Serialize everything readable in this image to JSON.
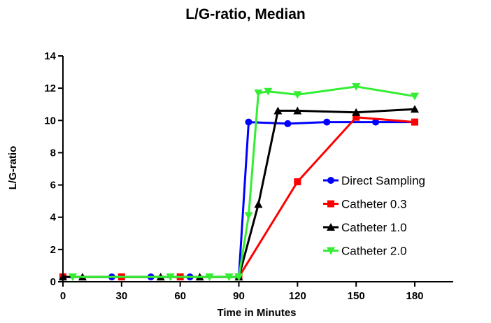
{
  "chart_data": {
    "type": "line",
    "title": "L/G-ratio, Median",
    "xlabel": "Time in Minutes",
    "ylabel": "L/G-ratio",
    "xlim": [
      0,
      195
    ],
    "ylim": [
      0,
      14
    ],
    "xticks": [
      0,
      30,
      60,
      90,
      120,
      150,
      180
    ],
    "yticks": [
      0,
      2,
      4,
      6,
      8,
      10,
      12,
      14
    ],
    "grid": false,
    "legend_position": "right",
    "series": [
      {
        "name": "Direct Sampling",
        "color": "#0000ff",
        "marker": "circle",
        "x": [
          0,
          25,
          45,
          65,
          90,
          95,
          115,
          135,
          160,
          180
        ],
        "y": [
          0.3,
          0.3,
          0.3,
          0.3,
          0.3,
          9.9,
          9.8,
          9.9,
          9.9,
          9.9
        ]
      },
      {
        "name": "Catheter 0.3",
        "color": "#ff0000",
        "marker": "square",
        "x": [
          0,
          30,
          60,
          90,
          120,
          150,
          180
        ],
        "y": [
          0.3,
          0.3,
          0.3,
          0.3,
          6.2,
          10.2,
          9.9
        ]
      },
      {
        "name": "Catheter 1.0",
        "color": "#000000",
        "marker": "triangle-up",
        "x": [
          0,
          10,
          50,
          70,
          90,
          100,
          110,
          120,
          150,
          180
        ],
        "y": [
          0.3,
          0.3,
          0.3,
          0.3,
          0.3,
          4.8,
          10.6,
          10.6,
          10.5,
          10.7
        ]
      },
      {
        "name": "Catheter 2.0",
        "color": "#33ee33",
        "marker": "triangle-down",
        "x": [
          5,
          55,
          75,
          85,
          90,
          95,
          100,
          105,
          120,
          150,
          180
        ],
        "y": [
          0.3,
          0.3,
          0.3,
          0.3,
          0.3,
          4.1,
          11.7,
          11.8,
          11.6,
          12.1,
          11.5
        ]
      }
    ]
  }
}
